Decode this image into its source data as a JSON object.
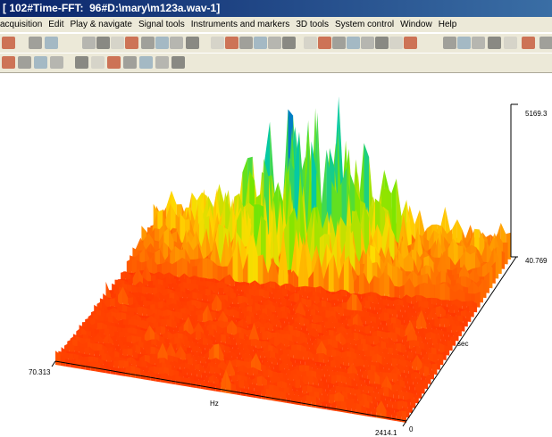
{
  "window": {
    "title": "[ 102#Time-FFT:  96#D:\\mary\\m123a.wav-1]"
  },
  "menu": [
    "acquisition",
    "Edit",
    "Play & navigate",
    "Signal tools",
    "Instruments and markers",
    "3D tools",
    "System control",
    "Window",
    "Help"
  ],
  "plot": {
    "z_max_label": "5169.3",
    "z_min_label": "40.769",
    "x_start_label": "70.313",
    "x_axis_label": "Hz",
    "x_end_label": "2414.1",
    "y_start_label": "0",
    "y_axis_label": "sec"
  }
}
